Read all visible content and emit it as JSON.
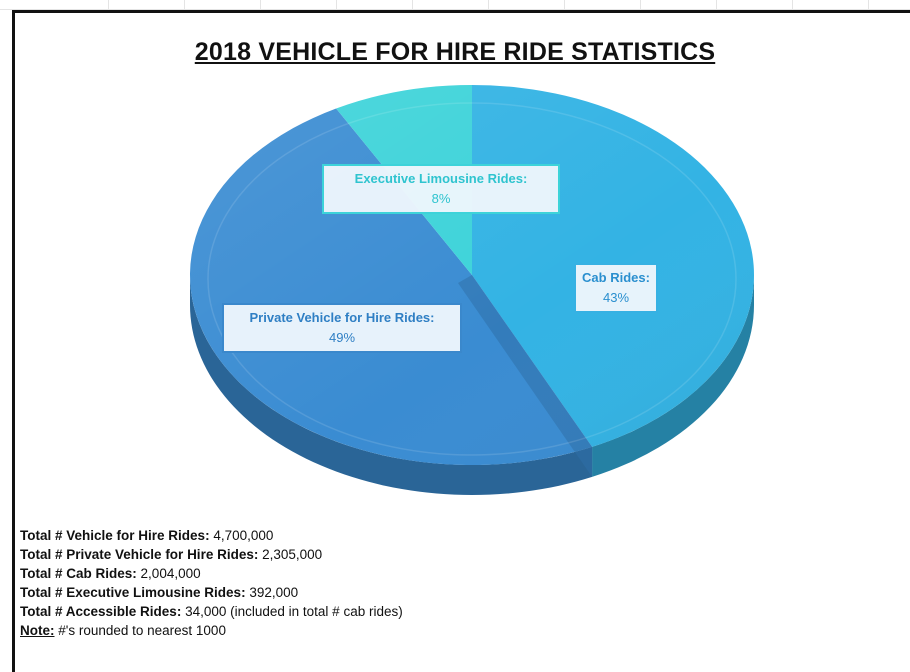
{
  "chart_data": {
    "type": "pie",
    "title": "2018 VEHICLE FOR HIRE RIDE STATISTICS",
    "slices": [
      {
        "name": "Cab Rides",
        "label": "Cab Rides:",
        "value": 43,
        "value_label": "43%",
        "color": "#33b3e4"
      },
      {
        "name": "Private Vehicle for Hire Rides",
        "label": "Private Vehicle for Hire Rides:",
        "value": 49,
        "value_label": "49%",
        "color": "#3a8cd2"
      },
      {
        "name": "Executive Limousine Rides",
        "label": "Executive Limousine Rides:",
        "value": 8,
        "value_label": "8%",
        "color": "#3dd3d9"
      }
    ]
  },
  "stats": [
    {
      "key": "Total # Vehicle for Hire Rides",
      "value": "4,700,000",
      "suffix": ""
    },
    {
      "key": "Total # Private Vehicle for Hire Rides",
      "value": "2,305,000",
      "suffix": ""
    },
    {
      "key": "Total # Cab Rides",
      "value": "2,004,000",
      "suffix": ""
    },
    {
      "key": "Total # Executive Limousine Rides",
      "value": "392,000",
      "suffix": ""
    },
    {
      "key": "Total # Accessible Rides",
      "value": "34,000",
      "suffix": " (included in total # cab rides)"
    }
  ],
  "note": {
    "key": "Note:",
    "text": " #'s rounded to nearest 1000"
  }
}
